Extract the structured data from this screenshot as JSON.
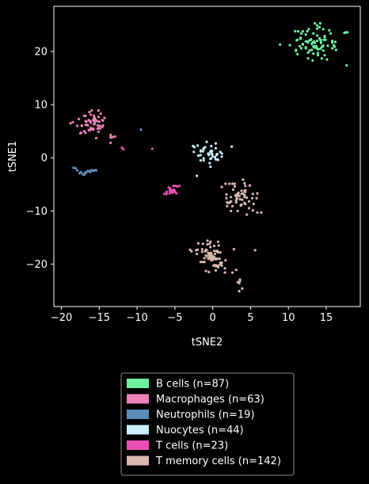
{
  "chart_data": {
    "type": "scatter",
    "xlabel": "tSNE2",
    "ylabel": "tSNE1",
    "xlim": [
      -21,
      19.5
    ],
    "ylim": [
      -28,
      28.5
    ],
    "xticks": [
      -20,
      -15,
      -10,
      -5,
      0,
      5,
      10,
      15
    ],
    "yticks": [
      20,
      10,
      0,
      -10,
      -20
    ],
    "xtick_labels": [
      "−20",
      "−15",
      "−10",
      "−5",
      "0",
      "5",
      "10",
      "15"
    ],
    "ytick_labels": [
      "20",
      "10",
      "0",
      "−10",
      "−20"
    ],
    "legend_position": "bottom-center",
    "background": "#000000",
    "series": [
      {
        "name": "B cells (n=87)",
        "color": "#6ef0a0",
        "x": [
          15.8,
          15.8,
          10.9,
          17.8,
          12.6,
          11.3,
          13.4,
          11.1,
          14.5,
          14.8,
          14.8,
          14.2,
          15.1,
          16.2,
          14.6,
          14.6,
          14.4,
          13.3,
          13.7,
          11.5,
          13.8,
          15.6,
          13.9,
          17.4,
          17.6,
          11.7,
          14.8,
          12.3,
          13.5,
          12.3,
          12.8,
          11.2,
          13.5,
          11.9,
          11.9,
          13.4,
          13.8,
          12.7,
          14.3,
          12.3,
          12.6,
          14.2,
          16.3,
          11.2,
          11.9,
          11.0,
          12.5,
          12.8,
          13.8,
          11.6,
          15.2,
          13.8,
          11.6,
          13.8,
          12.6,
          14.4,
          14.6,
          13.9,
          14.1,
          14.7,
          13.1,
          12.5,
          13.0,
          13.0,
          11.0,
          15.4,
          10.2,
          16.1,
          13.2,
          15.8,
          13.3,
          15.8,
          13.5,
          12.3,
          13.2,
          14.2,
          16.0,
          14.3,
          13.3,
          11.7,
          13.9,
          14.9,
          14.3,
          13.1,
          14.1,
          8.9,
          17.7
        ],
        "y": [
          22.0,
          21.8,
          23.8,
          23.6,
          18.7,
          23.8,
          21.9,
          22.1,
          20.9,
          22.7,
          19.3,
          20.5,
          18.5,
          21.8,
          21.1,
          20.2,
          20.8,
          23.4,
          21.0,
          21.0,
          23.0,
          23.4,
          19.3,
          23.5,
          23.6,
          23.4,
          22.9,
          20.6,
          21.6,
          20.8,
          22.1,
          19.5,
          25.3,
          21.3,
          21.4,
          21.0,
          24.9,
          24.2,
          21.8,
          23.2,
          19.8,
          22.2,
          20.3,
          22.2,
          23.8,
          20.1,
          23.8,
          20.2,
          20.6,
          22.4,
          21.1,
          22.0,
          22.6,
          24.3,
          21.7,
          18.7,
          24.2,
          20.4,
          24.6,
          22.2,
          21.4,
          21.9,
          22.2,
          22.3,
          20.3,
          24.0,
          21.2,
          20.9,
          18.3,
          20.6,
          20.9,
          21.7,
          20.7,
          21.9,
          21.7,
          25.3,
          21.2,
          22.2,
          19.6,
          20.6,
          19.7,
          22.2,
          21.6,
          20.3,
          22.5,
          21.3,
          17.4
        ]
      },
      {
        "name": "Macrophages (n=63)",
        "color": "#ee82b8",
        "x": [
          -16.8,
          -16.4,
          -15.7,
          -17.5,
          -15.2,
          -15.8,
          -15.0,
          -15.5,
          -14.5,
          -13.5,
          -15.8,
          -16.5,
          -14.5,
          -17.3,
          -15.1,
          -15.1,
          -15.7,
          -16.3,
          -17.0,
          -16.2,
          -16.7,
          -15.6,
          -16.2,
          -16.2,
          -15.8,
          -15.7,
          -16.4,
          -16.0,
          -15.7,
          -17.9,
          -14.6,
          -16.8,
          -15.1,
          -18.5,
          -17.7,
          -14.9,
          -16.1,
          -16.8,
          -18.8,
          -15.4,
          -17.4,
          -16.2,
          -15.1,
          -16.8,
          -15.2,
          -13.5,
          -16.1,
          -15.6,
          -17.3,
          -14.6,
          -16.1,
          -13.4,
          -13.2,
          -12.9,
          -13.5,
          -15.9,
          -14.3,
          -17.0,
          -15.6,
          -14.8,
          -15.3,
          -16.6,
          -14.9
        ],
        "y": [
          7.9,
          7.1,
          6.3,
          4.6,
          6.1,
          5.3,
          6.8,
          7.2,
          7.0,
          3.8,
          5.5,
          6.1,
          6.1,
          6.1,
          4.9,
          7.7,
          7.4,
          8.6,
          7.9,
          6.9,
          6.8,
          6.4,
          6.9,
          5.3,
          7.1,
          7.9,
          5.2,
          8.9,
          7.0,
          6.0,
          5.8,
          4.7,
          8.9,
          6.7,
          7.3,
          5.5,
          8.1,
          6.9,
          6.5,
          3.7,
          4.7,
          5.2,
          5.6,
          6.2,
          5.5,
          4.3,
          5.6,
          7.5,
          6.0,
          7.1,
          6.6,
          3.9,
          3.9,
          4.0,
          2.8,
          5.5,
          7.5,
          5.0,
          6.8,
          8.3,
          6.9,
          6.2,
          6.0
        ]
      },
      {
        "name": "Neutrophils (n=19)",
        "color": "#5b8dba",
        "x": [
          -18.4,
          -17.9,
          -17.6,
          -17.2,
          -16.9,
          -16.6,
          -16.3,
          -16.0,
          -15.7,
          -15.5,
          -18.1,
          -17.4,
          -16.8,
          -16.2,
          -15.8,
          -15.4,
          -17.0,
          -16.5,
          -9.5
        ],
        "y": [
          -1.9,
          -2.4,
          -2.9,
          -3.1,
          -2.8,
          -2.6,
          -2.5,
          -2.3,
          -2.4,
          -2.3,
          -2.0,
          -2.7,
          -2.9,
          -2.7,
          -2.5,
          -2.4,
          -3.2,
          -2.5,
          5.3
        ]
      },
      {
        "name": "Nuocytes (n=44)",
        "color": "#c8eef8",
        "x": [
          -1.0,
          -2.5,
          -0.1,
          -0.2,
          -0.1,
          0.4,
          0.4,
          0.4,
          -0.5,
          -0.2,
          0.6,
          -1.9,
          -2.6,
          0.6,
          0.7,
          -1.2,
          1.2,
          -2.4,
          -0.5,
          1.0,
          0.3,
          -1.6,
          -0.3,
          -0.3,
          0.0,
          -0.8,
          -1.6,
          -0.6,
          -1.3,
          -1.2,
          2.5,
          -1.6,
          -1.2,
          -1.2,
          0.5,
          1.2,
          -1.6,
          -0.1,
          -2.1,
          -0.2,
          -0.3,
          -0.4,
          -0.3,
          -2.0
        ],
        "y": [
          2.0,
          1.1,
          1.3,
          -0.1,
          0.7,
          -0.3,
          2.7,
          1.8,
          0.7,
          2.2,
          -0.3,
          0.4,
          2.2,
          0.7,
          -0.4,
          1.8,
          0.2,
          2.0,
          0.5,
          1.1,
          0.1,
          1.4,
          -0.2,
          1.1,
          0.3,
          3.0,
          1.2,
          0.8,
          1.2,
          -0.5,
          2.1,
          0.5,
          -0.1,
          1.6,
          0.5,
          0.8,
          -0.5,
          0.8,
          -3.4,
          1.3,
          1.2,
          -1.0,
          -1.7,
          2.3
        ]
      },
      {
        "name": "T cells (n=23)",
        "color": "#e850b4",
        "x": [
          -5.3,
          -5.6,
          -4.7,
          -4.8,
          -5.3,
          -5.8,
          -5.0,
          -6.1,
          -5.5,
          -5.0,
          -4.4,
          -5.7,
          -5.4,
          -5.2,
          -6.4,
          -5.7,
          -5.1,
          -5.5,
          -4.9,
          -6.1,
          -12.0,
          -11.8,
          -8.0
        ],
        "y": [
          -6.6,
          -5.8,
          -5.4,
          -6.7,
          -6.2,
          -5.6,
          -6.4,
          -6.4,
          -6.1,
          -6.3,
          -5.3,
          -6.2,
          -6.2,
          -5.3,
          -6.8,
          -6.7,
          -6.0,
          -6.4,
          -5.3,
          -6.8,
          1.9,
          1.6,
          1.7
        ]
      },
      {
        "name": "T memory cells (n=142)",
        "color": "#d8b8b0",
        "x": [
          3.2,
          4.2,
          3.9,
          3.7,
          3.2,
          2.3,
          4.3,
          5.3,
          5.9,
          3.1,
          5.4,
          2.4,
          4.0,
          2.2,
          2.9,
          1.9,
          3.1,
          3.1,
          3.4,
          2.7,
          6.4,
          4.8,
          4.2,
          2.1,
          4.9,
          4.2,
          4.5,
          5.3,
          4.3,
          3.3,
          4.2,
          4.5,
          2.9,
          1.8,
          5.9,
          4.9,
          3.8,
          3.3,
          3.6,
          4.3,
          4.2,
          3.0,
          1.7,
          1.9,
          2.4,
          3.5,
          4.0,
          4.2,
          4.8,
          1.8,
          3.8,
          5.8,
          3.4,
          5.2,
          4.3,
          3.1,
          2.6,
          1.2,
          3.8,
          2.4,
          2.6,
          0.4,
          -2.8,
          -0.4,
          0.2,
          -2.0,
          -0.9,
          -1.6,
          -3.0,
          -0.5,
          1.2,
          -0.2,
          -1.3,
          -0.7,
          0.4,
          -0.9,
          -0.8,
          1.2,
          -0.2,
          -0.4,
          -1.1,
          0.4,
          0.0,
          -0.6,
          1.0,
          2.8,
          -1.0,
          -0.5,
          0.4,
          1.0,
          -2.2,
          1.7,
          -0.2,
          -0.2,
          0.8,
          -0.7,
          -1.4,
          -0.5,
          1.0,
          0.6,
          -1.1,
          -0.3,
          -0.6,
          0.7,
          1.6,
          -0.9,
          -2.1,
          -1.4,
          -0.2,
          -1.3,
          1.1,
          -0.8,
          -1.9,
          0.2,
          0.0,
          0.1,
          -0.4,
          0.7,
          0.1,
          -0.1,
          0.4,
          0.9,
          1.6,
          0.7,
          0.2,
          -0.2,
          -0.3,
          0.3,
          0.5,
          0.6,
          0.2,
          0.7,
          3.5,
          3.1,
          3.3,
          3.9,
          3.5,
          2.6,
          3.6,
          3.6,
          5.6
        ],
        "y": [
          -7.7,
          -7.2,
          -7.9,
          -9.0,
          -7.6,
          -8.4,
          -6.1,
          -9.9,
          -6.7,
          -8.0,
          -8.7,
          -7.4,
          -6.7,
          -4.9,
          -5.4,
          -9.1,
          -8.4,
          -7.0,
          -6.6,
          -6.0,
          -10.3,
          -9.5,
          -7.0,
          -8.5,
          -5.2,
          -7.4,
          -10.7,
          -6.8,
          -5.3,
          -6.8,
          -4.8,
          -7.5,
          -4.9,
          -7.6,
          -10.3,
          -5.2,
          -6.2,
          -10.0,
          -7.8,
          -6.4,
          -8.5,
          -7.1,
          -4.9,
          -8.4,
          -8.2,
          -7.2,
          -4.1,
          -6.2,
          -8.2,
          -6.9,
          -8.8,
          -7.6,
          -7.1,
          -7.6,
          -8.7,
          -7.2,
          -9.1,
          -5.5,
          -6.8,
          -10.0,
          -4.9,
          -19.1,
          -17.6,
          -16.2,
          -17.5,
          -17.3,
          -21.3,
          -19.6,
          -17.3,
          -18.3,
          -19.8,
          -17.9,
          -19.6,
          -16.3,
          -21.2,
          -17.3,
          -18.5,
          -20.3,
          -19.3,
          -18.6,
          -18.9,
          -20.2,
          -18.5,
          -17.9,
          -19.8,
          -17.2,
          -17.6,
          -21.5,
          -19.0,
          -17.8,
          -17.4,
          -19.3,
          -18.7,
          -18.8,
          -16.5,
          -15.6,
          -17.7,
          -19.0,
          -20.1,
          -17.5,
          -19.6,
          -16.8,
          -18.9,
          -15.8,
          -21.6,
          -18.4,
          -18.1,
          -17.2,
          -18.9,
          -16.2,
          -19.7,
          -17.4,
          -16.1,
          -20.2,
          -19.2,
          -19.0,
          -18.0,
          -20.6,
          -20.3,
          -18.9,
          -20.4,
          -19.0,
          -20.8,
          -20.3,
          -18.7,
          -18.3,
          -15.8,
          -18.1,
          -17.6,
          -19.0,
          -16.6,
          -17.8,
          -23.6,
          -21.1,
          -23.4,
          -24.6,
          -25.1,
          -21.6,
          -23.2,
          -22.9,
          -17.4
        ]
      }
    ]
  }
}
